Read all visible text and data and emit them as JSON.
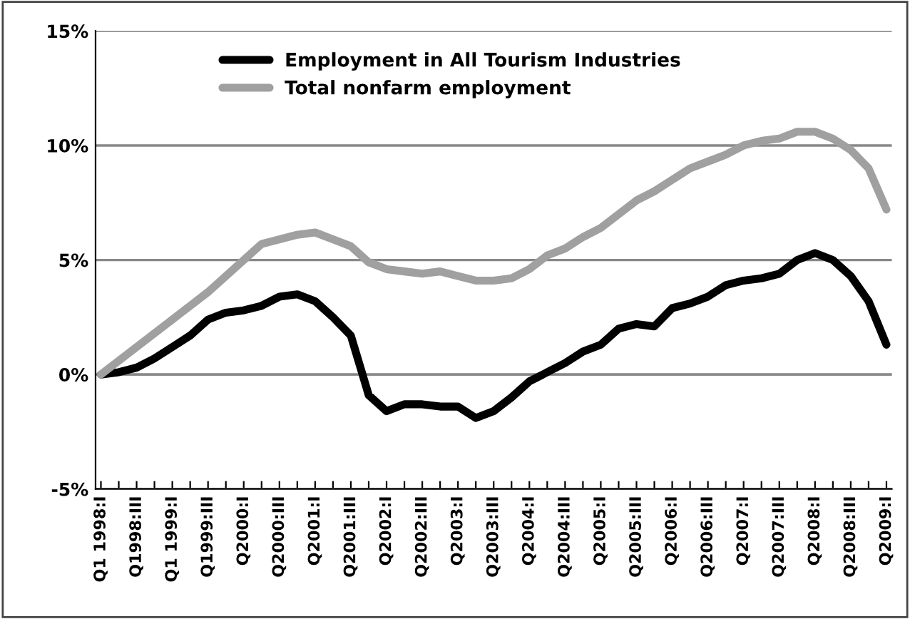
{
  "chart_data": {
    "type": "line",
    "categories": [
      "Q1 1998:I",
      null,
      "Q1998:III",
      null,
      "Q1 1999:I",
      null,
      "Q1999:III",
      null,
      "Q2000:I",
      null,
      "Q2000:III",
      null,
      "Q2001:I",
      null,
      "Q2001:III",
      null,
      "Q2002:I",
      null,
      "Q2002:III",
      null,
      "Q2003:I",
      null,
      "Q2003:III",
      null,
      "Q2004:I",
      null,
      "Q2004:III",
      null,
      "Q2005:I",
      null,
      "Q2005:III",
      null,
      "Q2006:I",
      null,
      "Q2006:III",
      null,
      "Q2007:I",
      null,
      "Q2007:III",
      null,
      "Q2008:I",
      null,
      "Q2008:III",
      null,
      "Q2009:I"
    ],
    "series": [
      {
        "name": "Employment in All Tourism Industries",
        "color": "#000000",
        "values": [
          0,
          0.1,
          0.3,
          0.7,
          1.2,
          1.7,
          2.4,
          2.7,
          2.8,
          3.0,
          3.4,
          3.5,
          3.2,
          2.5,
          1.7,
          -0.9,
          -1.6,
          -1.3,
          -1.3,
          -1.4,
          -1.4,
          -1.9,
          -1.6,
          -1.0,
          -0.3,
          0.1,
          0.5,
          1.0,
          1.3,
          2.0,
          2.2,
          2.1,
          2.9,
          3.1,
          3.4,
          3.9,
          4.1,
          4.2,
          4.4,
          5.0,
          5.3,
          5.0,
          4.3,
          3.2,
          1.3
        ]
      },
      {
        "name": "Total nonfarm employment",
        "color": "#a0a0a0",
        "values": [
          0,
          0.6,
          1.2,
          1.8,
          2.4,
          3.0,
          3.6,
          4.3,
          5.0,
          5.7,
          5.9,
          6.1,
          6.2,
          5.9,
          5.6,
          4.9,
          4.6,
          4.5,
          4.4,
          4.5,
          4.3,
          4.1,
          4.1,
          4.2,
          4.6,
          5.2,
          5.5,
          6.0,
          6.4,
          7.0,
          7.6,
          8.0,
          8.5,
          9.0,
          9.3,
          9.6,
          10.0,
          10.2,
          10.3,
          10.6,
          10.6,
          10.3,
          9.8,
          9.0,
          7.2
        ]
      }
    ],
    "ylim": [
      -5,
      15
    ],
    "yticks": [
      {
        "value": -5,
        "label": "-5%"
      },
      {
        "value": 0,
        "label": "0%"
      },
      {
        "value": 5,
        "label": "5%"
      },
      {
        "value": 10,
        "label": "10%"
      },
      {
        "value": 15,
        "label": "15%"
      }
    ],
    "grid": "y",
    "legend": "top left",
    "marker": "none",
    "line_style": "solid"
  }
}
